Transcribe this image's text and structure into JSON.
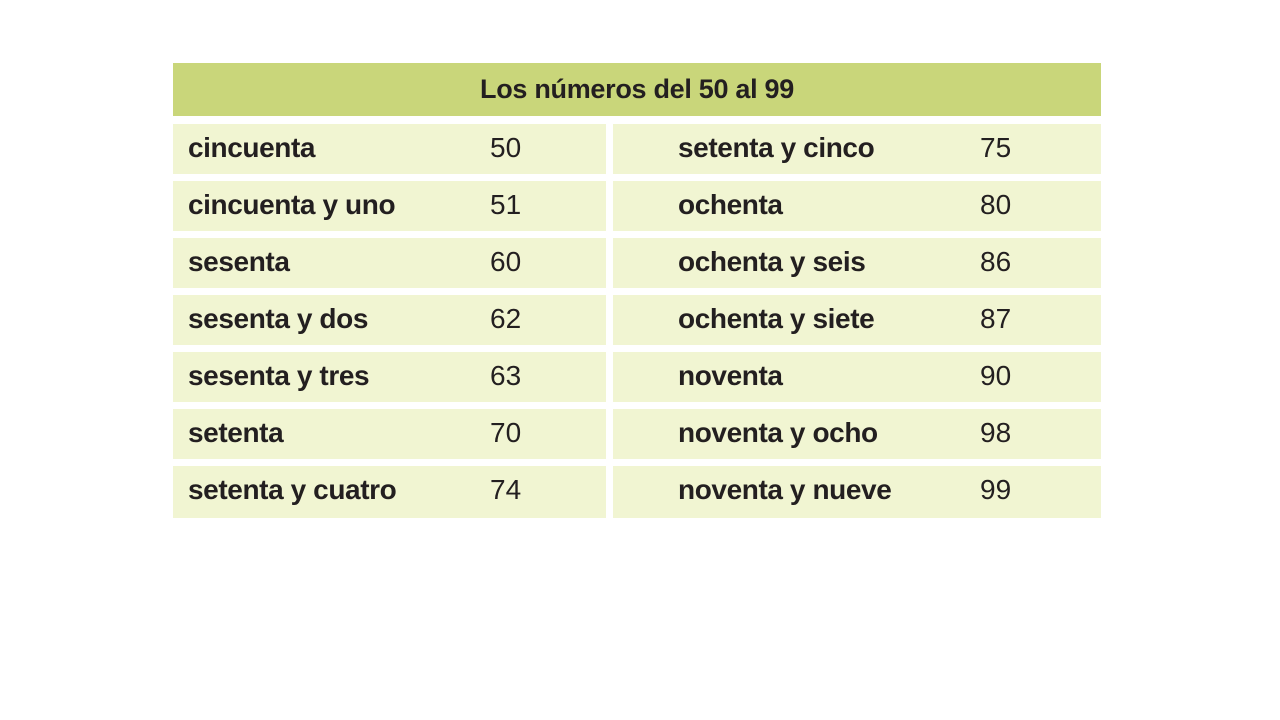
{
  "table": {
    "title": "Los números del 50 al 99",
    "left_rows": [
      {
        "word": "cincuenta",
        "number": "50"
      },
      {
        "word": "cincuenta y uno",
        "number": "51"
      },
      {
        "word": "sesenta",
        "number": "60"
      },
      {
        "word": "sesenta y dos",
        "number": "62"
      },
      {
        "word": "sesenta y tres",
        "number": "63"
      },
      {
        "word": "setenta",
        "number": "70"
      },
      {
        "word": "setenta y cuatro",
        "number": "74"
      }
    ],
    "right_rows": [
      {
        "word": "setenta y cinco",
        "number": "75"
      },
      {
        "word": "ochenta",
        "number": "80"
      },
      {
        "word": "ochenta y seis",
        "number": "86"
      },
      {
        "word": "ochenta y siete",
        "number": "87"
      },
      {
        "word": "noventa",
        "number": "90"
      },
      {
        "word": "noventa y ocho",
        "number": "98"
      },
      {
        "word": "noventa y nueve",
        "number": "99"
      }
    ]
  },
  "colors": {
    "header_background": "#c9d67a",
    "row_background": "#f1f5d2",
    "text": "#231f20",
    "page_background": "#ffffff"
  }
}
